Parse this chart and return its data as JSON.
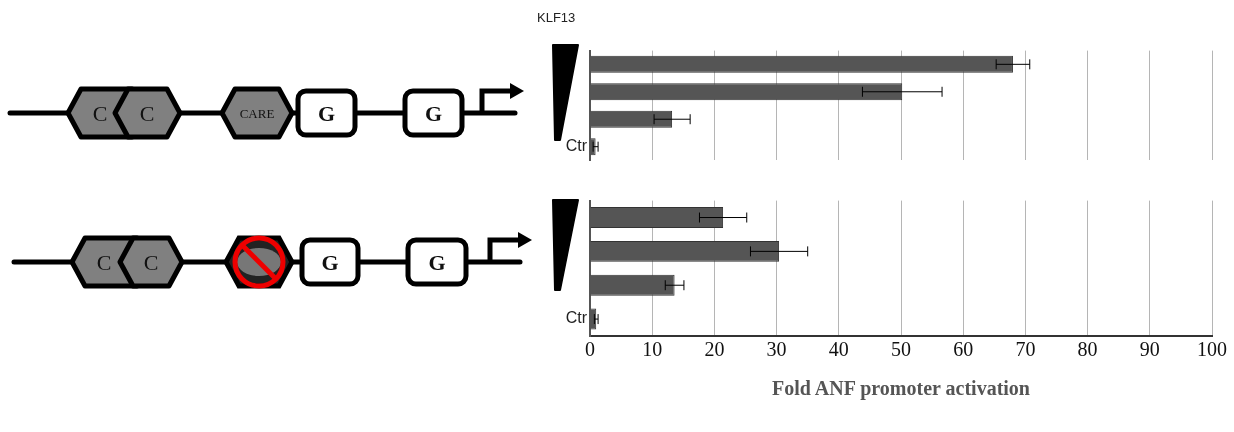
{
  "chart_data": [
    {
      "type": "bar",
      "orientation": "horizontal",
      "categories": [
        null,
        null,
        null,
        "Ctr"
      ],
      "values": [
        68,
        50.2,
        13.2,
        0.9
      ],
      "errors": [
        2.7,
        6.4,
        2.9,
        0.4
      ],
      "color": "#555555",
      "xlim": [
        0,
        100
      ],
      "xticks": [
        0,
        10,
        20,
        30,
        40,
        50,
        60,
        70,
        80,
        90,
        100
      ],
      "grid": "x",
      "tick_labels": "y",
      "annotations": [
        "KLF13",
        "C",
        "C",
        "CARE",
        "G",
        "G"
      ]
    },
    {
      "type": "bar",
      "orientation": "horizontal",
      "categories": [
        null,
        null,
        null,
        "Ctr"
      ],
      "values": [
        21.4,
        30.4,
        13.6,
        1
      ],
      "errors": [
        3.8,
        4.6,
        1.5,
        0.3
      ],
      "color": "#555555",
      "xlim": [
        0,
        100
      ],
      "xticks": [
        0,
        10,
        20,
        30,
        40,
        50,
        60,
        70,
        80,
        90,
        100
      ],
      "grid": "x",
      "xlabel": "Fold ANF promoter activation",
      "annotations": [
        "C",
        "C",
        "G",
        "G"
      ]
    }
  ]
}
